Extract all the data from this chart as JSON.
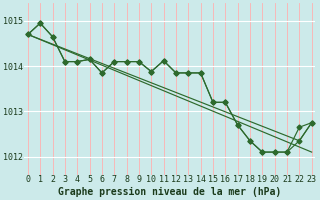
{
  "background_color": "#cceaea",
  "grid_color_h": "#ffffff",
  "grid_color_v": "#ffaaaa",
  "line_color": "#2d6a2d",
  "x_ticks": [
    0,
    1,
    2,
    3,
    4,
    5,
    6,
    7,
    8,
    9,
    10,
    11,
    12,
    13,
    14,
    15,
    16,
    17,
    18,
    19,
    20,
    21,
    22,
    23
  ],
  "y_ticks": [
    1012,
    1013,
    1014,
    1015
  ],
  "ylim": [
    1011.6,
    1015.4
  ],
  "xlim": [
    -0.3,
    23.3
  ],
  "xlabel": "Graphe pression niveau de la mer (hPa)",
  "series_main": [
    1014.7,
    1014.95,
    1014.65,
    1014.1,
    1014.1,
    1014.15,
    1013.85,
    1014.1,
    1014.1,
    1014.1,
    1013.88,
    1014.12,
    1013.85,
    1013.85,
    1013.85,
    1013.2,
    1013.2,
    1012.7,
    1012.35,
    1012.1,
    1012.1,
    1012.1,
    1012.35,
    1012.75
  ],
  "series2": [
    1014.7,
    1014.95,
    1014.65,
    1014.1,
    1014.1,
    1014.15,
    1013.85,
    1014.1,
    1014.1,
    1014.1,
    1013.88,
    1014.12,
    1013.85,
    1013.85,
    1013.85,
    1013.2,
    1013.2,
    1012.7,
    1012.35,
    1012.1,
    1012.1,
    1012.1,
    1012.65,
    1012.75
  ],
  "series_line1_x": [
    0,
    23
  ],
  "series_line1_y": [
    1014.7,
    1012.1
  ],
  "series_line2_x": [
    0,
    22,
    23
  ],
  "series_line2_y": [
    1014.7,
    1012.35,
    1012.75
  ],
  "title_fontsize": 7.0,
  "tick_fontsize": 6.0,
  "marker_size": 2.5,
  "line_width": 0.85,
  "marker": "D"
}
